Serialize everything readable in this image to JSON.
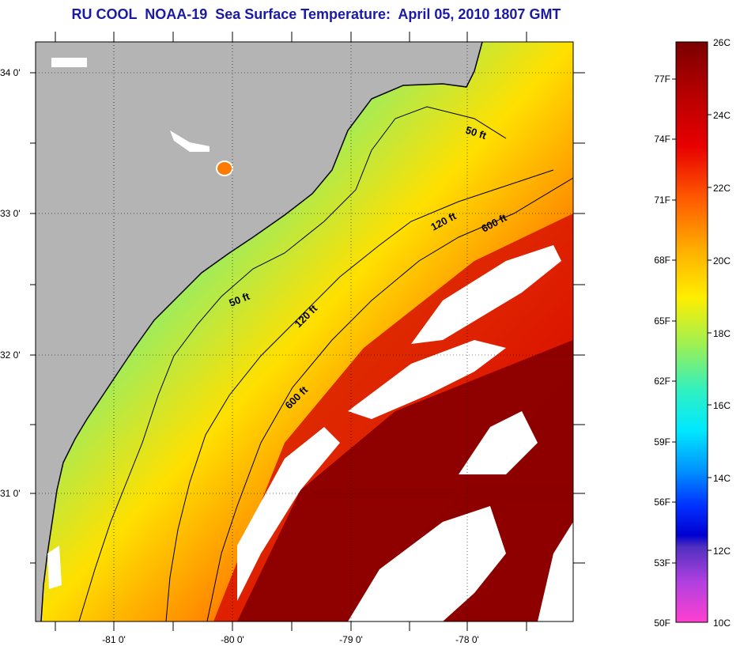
{
  "title": "RU COOL  NOAA-19  Sea Surface Temperature:  April 05, 2010 1807 GMT",
  "map": {
    "latitude_labels": [
      "34 0'",
      "33 0'",
      "32 0'",
      "31 0'"
    ],
    "longitude_labels": [
      "-81 0'",
      "-80 0'",
      "-79 0'",
      "-78 0'"
    ],
    "contours": [
      {
        "label": "50 ft"
      },
      {
        "label": "120 ft"
      },
      {
        "label": "600 ft"
      }
    ],
    "colors": {
      "land": "#b4b4b4",
      "cloud": "#ffffff",
      "grid": "#000000"
    }
  },
  "colorbar": {
    "celsius_labels": [
      "26C",
      "24C",
      "22C",
      "20C",
      "18C",
      "16C",
      "14C",
      "12C",
      "10C"
    ],
    "fahrenheit_labels": [
      "77F",
      "74F",
      "71F",
      "68F",
      "65F",
      "62F",
      "59F",
      "56F",
      "53F",
      "50F"
    ],
    "gradient_colors": [
      "#7a0000",
      "#b00000",
      "#e00000",
      "#ff3300",
      "#ff7a00",
      "#ffb000",
      "#ffe600",
      "#c8f000",
      "#70f070",
      "#30f0c0",
      "#00e8ff",
      "#00a0ff",
      "#0040ff",
      "#0000e0",
      "#8040c0",
      "#c040e0",
      "#ff40d0"
    ]
  }
}
